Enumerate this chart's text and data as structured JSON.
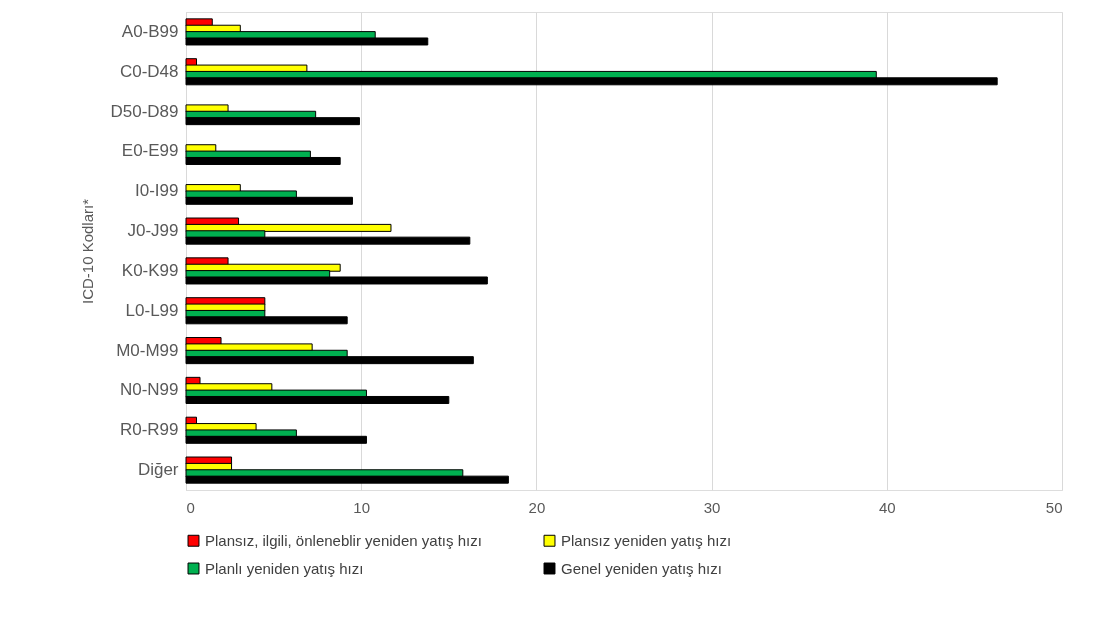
{
  "chart_data": {
    "type": "bar",
    "orientation": "horizontal",
    "ylabel": "ICD-10 Kodları*",
    "categories": [
      "A0-B99",
      "C0-D48",
      "D50-D89",
      "E0-E99",
      "I0-I99",
      "J0-J99",
      "K0-K99",
      "L0-L99",
      "M0-M99",
      "N0-N99",
      "R0-R99",
      "Diğer"
    ],
    "series": [
      {
        "name": "Plansız, ilgili, önleneblir yeniden yatış hızı",
        "color": "#ff0000",
        "values": [
          1.5,
          0.6,
          null,
          null,
          null,
          3.0,
          2.4,
          4.5,
          2.0,
          0.8,
          0.6,
          2.6
        ]
      },
      {
        "name": "Plansız yeniden yatış hızı",
        "color": "#ffff00",
        "values": [
          3.1,
          6.9,
          2.4,
          1.7,
          3.1,
          11.7,
          8.8,
          4.5,
          7.2,
          4.9,
          4.0,
          2.6
        ]
      },
      {
        "name": "Planlı yeniden yatış hızı",
        "color": "#00b050",
        "values": [
          10.8,
          39.4,
          7.4,
          7.1,
          6.3,
          4.5,
          8.2,
          4.5,
          9.2,
          10.3,
          6.3,
          15.8
        ]
      },
      {
        "name": "Genel yeniden yatış hızı",
        "color": "#000000",
        "values": [
          13.8,
          46.3,
          9.9,
          8.8,
          9.5,
          16.2,
          17.2,
          9.2,
          16.4,
          15.0,
          10.3,
          18.4
        ]
      }
    ],
    "xlim": [
      0,
      50
    ],
    "xticks": [
      0,
      10,
      20,
      30,
      40,
      50
    ],
    "grid": "x",
    "legend": "bottom"
  }
}
